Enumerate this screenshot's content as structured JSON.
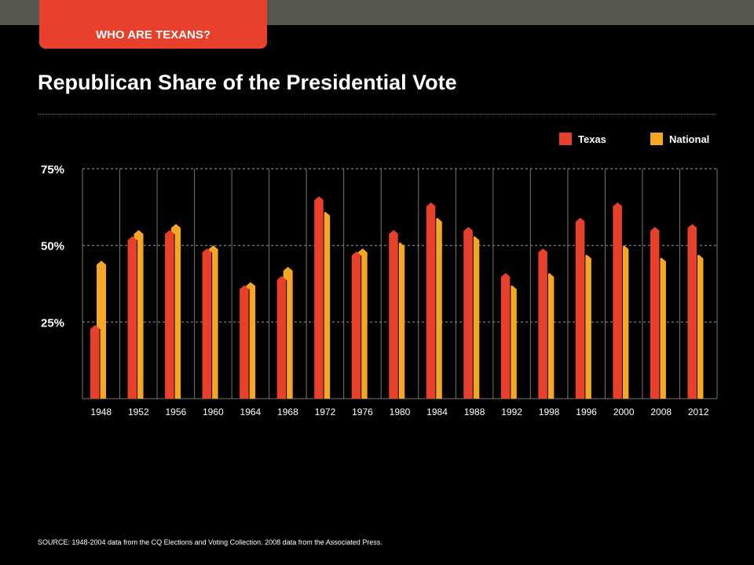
{
  "header": {
    "section_tag": "WHO ARE TEXANS?"
  },
  "colors": {
    "texas": "#e8402a",
    "national": "#f5a623",
    "background": "#000000",
    "topbar": "#58574d"
  },
  "legend": {
    "texas_label": "Texas",
    "national_label": "National"
  },
  "footer": {
    "source": "SOURCE: 1948-2004 data from the CQ Elections and Voting Collection. 2008 data from the Associated Press."
  },
  "chart_data": {
    "type": "bar",
    "title": "Republican Share of the Presidential Vote",
    "xlabel": "",
    "ylabel": "",
    "ylim": [
      0,
      75
    ],
    "yticks": [
      25,
      50,
      75
    ],
    "ytick_labels": [
      "25%",
      "50%",
      "75%"
    ],
    "grid": true,
    "legend_position": "top-right",
    "categories": [
      "1948",
      "1952",
      "1956",
      "1960",
      "1964",
      "1968",
      "1972",
      "1976",
      "1980",
      "1984",
      "1988",
      "1992",
      "1998",
      "1996",
      "2000",
      "2008",
      "2012"
    ],
    "series": [
      {
        "name": "Texas",
        "values": [
          24,
          53,
          55,
          49,
          37,
          40,
          66,
          48,
          55,
          64,
          56,
          41,
          49,
          59,
          64,
          56,
          57
        ]
      },
      {
        "name": "National",
        "values": [
          45,
          55,
          57,
          50,
          38,
          43,
          61,
          49,
          51,
          59,
          53,
          37,
          41,
          47,
          50,
          46,
          47
        ]
      }
    ]
  }
}
